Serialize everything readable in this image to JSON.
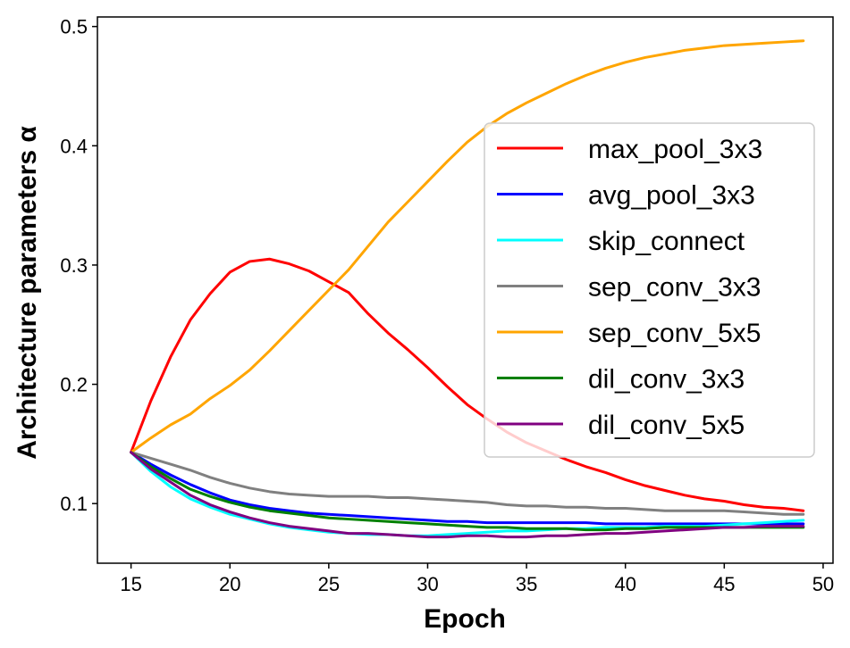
{
  "chart_data": {
    "type": "line",
    "xlabel": "Epoch",
    "ylabel": "Architecture parameters α",
    "xlim": [
      13.3,
      50.5
    ],
    "ylim": [
      0.05,
      0.508
    ],
    "xticks": [
      15,
      20,
      25,
      30,
      35,
      40,
      45,
      50
    ],
    "yticks": [
      0.1,
      0.2,
      0.3,
      0.4,
      0.5
    ],
    "xtick_labels": [
      "15",
      "20",
      "25",
      "30",
      "35",
      "40",
      "45",
      "50"
    ],
    "ytick_labels": [
      "0.1",
      "0.2",
      "0.3",
      "0.4",
      "0.5"
    ],
    "grid": false,
    "legend_position": "center-right",
    "x": [
      15,
      16,
      17,
      18,
      19,
      20,
      21,
      22,
      23,
      24,
      25,
      26,
      27,
      28,
      29,
      30,
      31,
      32,
      33,
      34,
      35,
      36,
      37,
      38,
      39,
      40,
      41,
      42,
      43,
      44,
      45,
      46,
      47,
      48,
      49
    ],
    "series": [
      {
        "name": "max_pool_3x3",
        "color": "#ff0000",
        "values": [
          0.143,
          0.186,
          0.223,
          0.254,
          0.276,
          0.294,
          0.303,
          0.305,
          0.301,
          0.295,
          0.286,
          0.277,
          0.259,
          0.243,
          0.229,
          0.214,
          0.198,
          0.183,
          0.171,
          0.16,
          0.151,
          0.144,
          0.137,
          0.131,
          0.126,
          0.12,
          0.115,
          0.111,
          0.107,
          0.104,
          0.102,
          0.099,
          0.097,
          0.096,
          0.094
        ]
      },
      {
        "name": "avg_pool_3x3",
        "color": "#0000ff",
        "values": [
          0.143,
          0.133,
          0.124,
          0.116,
          0.109,
          0.103,
          0.099,
          0.096,
          0.094,
          0.092,
          0.091,
          0.09,
          0.089,
          0.088,
          0.087,
          0.086,
          0.085,
          0.085,
          0.084,
          0.084,
          0.084,
          0.084,
          0.084,
          0.084,
          0.083,
          0.083,
          0.083,
          0.083,
          0.083,
          0.083,
          0.083,
          0.083,
          0.083,
          0.083,
          0.083
        ]
      },
      {
        "name": "skip_connect",
        "color": "#00ffff",
        "values": [
          0.143,
          0.127,
          0.114,
          0.104,
          0.097,
          0.091,
          0.087,
          0.083,
          0.08,
          0.078,
          0.076,
          0.075,
          0.074,
          0.074,
          0.073,
          0.073,
          0.074,
          0.075,
          0.076,
          0.077,
          0.077,
          0.078,
          0.079,
          0.079,
          0.08,
          0.08,
          0.08,
          0.081,
          0.081,
          0.081,
          0.082,
          0.083,
          0.084,
          0.085,
          0.086
        ]
      },
      {
        "name": "sep_conv_3x3",
        "color": "#808080",
        "values": [
          0.143,
          0.138,
          0.133,
          0.128,
          0.122,
          0.117,
          0.113,
          0.11,
          0.108,
          0.107,
          0.106,
          0.106,
          0.106,
          0.105,
          0.105,
          0.104,
          0.103,
          0.102,
          0.101,
          0.099,
          0.098,
          0.098,
          0.097,
          0.097,
          0.096,
          0.096,
          0.095,
          0.094,
          0.094,
          0.094,
          0.094,
          0.093,
          0.092,
          0.091,
          0.091
        ]
      },
      {
        "name": "sep_conv_5x5",
        "color": "#ffa500",
        "values": [
          0.143,
          0.155,
          0.166,
          0.175,
          0.188,
          0.199,
          0.212,
          0.228,
          0.245,
          0.262,
          0.279,
          0.296,
          0.316,
          0.336,
          0.353,
          0.37,
          0.387,
          0.403,
          0.416,
          0.427,
          0.436,
          0.444,
          0.452,
          0.459,
          0.465,
          0.47,
          0.474,
          0.477,
          0.48,
          0.482,
          0.484,
          0.485,
          0.486,
          0.487,
          0.488
        ]
      },
      {
        "name": "dil_conv_3x3",
        "color": "#008000",
        "values": [
          0.143,
          0.131,
          0.121,
          0.112,
          0.106,
          0.101,
          0.097,
          0.094,
          0.092,
          0.09,
          0.088,
          0.087,
          0.086,
          0.085,
          0.084,
          0.083,
          0.082,
          0.081,
          0.08,
          0.08,
          0.079,
          0.079,
          0.079,
          0.078,
          0.078,
          0.079,
          0.079,
          0.08,
          0.08,
          0.08,
          0.08,
          0.08,
          0.08,
          0.08,
          0.08
        ]
      },
      {
        "name": "dil_conv_5x5",
        "color": "#800080",
        "values": [
          0.143,
          0.129,
          0.118,
          0.107,
          0.099,
          0.093,
          0.088,
          0.084,
          0.081,
          0.079,
          0.077,
          0.075,
          0.075,
          0.074,
          0.073,
          0.072,
          0.072,
          0.073,
          0.073,
          0.072,
          0.072,
          0.073,
          0.073,
          0.074,
          0.075,
          0.075,
          0.076,
          0.077,
          0.078,
          0.079,
          0.08,
          0.08,
          0.081,
          0.081,
          0.081
        ]
      }
    ]
  }
}
